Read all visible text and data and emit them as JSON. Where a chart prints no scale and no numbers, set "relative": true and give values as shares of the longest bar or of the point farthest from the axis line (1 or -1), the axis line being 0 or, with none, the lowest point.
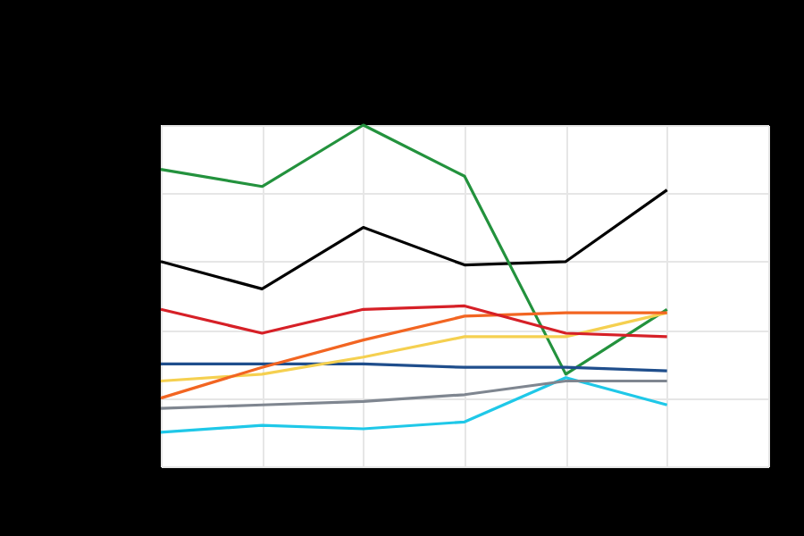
{
  "chart_data": {
    "type": "line",
    "relative": true,
    "categories": [
      null,
      null,
      null,
      null,
      null,
      null,
      null
    ],
    "grid": true,
    "marker": "none",
    "line_style": "solid",
    "series": [
      {
        "color": "#000000",
        "values": [
          0.6,
          0.52,
          0.7,
          0.59,
          0.6,
          0.81,
          null
        ]
      },
      {
        "color": "#23923d",
        "values": [
          0.87,
          0.82,
          1.0,
          0.85,
          0.27,
          0.46,
          null
        ]
      },
      {
        "color": "#1fc8e8",
        "values": [
          0.1,
          0.12,
          0.11,
          0.13,
          0.26,
          0.18,
          null
        ]
      },
      {
        "color": "#1f4e8c",
        "values": [
          0.3,
          0.3,
          0.3,
          0.29,
          0.29,
          0.28,
          null
        ]
      },
      {
        "color": "#f5d050",
        "values": [
          0.25,
          0.27,
          0.32,
          0.38,
          0.38,
          0.45,
          null
        ]
      },
      {
        "color": "#f26522",
        "values": [
          0.2,
          0.29,
          0.37,
          0.44,
          0.45,
          0.45,
          null
        ]
      },
      {
        "color": "#d62027",
        "values": [
          0.46,
          0.39,
          0.46,
          0.47,
          0.39,
          0.38,
          null
        ]
      },
      {
        "color": "#7f8690",
        "values": [
          0.17,
          0.18,
          0.19,
          0.21,
          0.25,
          0.25,
          null
        ]
      }
    ]
  }
}
